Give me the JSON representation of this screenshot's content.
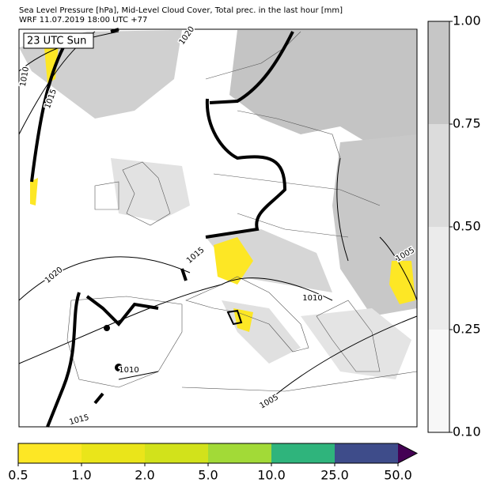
{
  "header": {
    "title": "Sea Level Pressure [hPa], Mid-Level Cloud Cover, Total prec. in the last hour [mm]",
    "subtitle": "WRF 11.07.2019 18:00 UTC +77"
  },
  "map": {
    "time_label": "23 UTC Sun",
    "isobar_labels": [
      1020,
      1010,
      1015,
      1020,
      1015,
      1005,
      1010,
      1010,
      1005,
      1015
    ]
  },
  "cloud_colorbar": {
    "ticks": [
      {
        "value": 0.1,
        "label": "0.10"
      },
      {
        "value": 0.25,
        "label": "0.25"
      },
      {
        "value": 0.5,
        "label": "0.50"
      },
      {
        "value": 0.75,
        "label": "0.75"
      },
      {
        "value": 1,
        "label": "1.00"
      }
    ],
    "colors": [
      "#f7f7f7",
      "#ebebeb",
      "#dcdcdc",
      "#c6c6c6"
    ]
  },
  "precip_colorbar": {
    "ticks": [
      {
        "value": 0.5,
        "label": "0.5"
      },
      {
        "value": 1,
        "label": "1.0"
      },
      {
        "value": 2,
        "label": "2.0"
      },
      {
        "value": 5,
        "label": "5.0"
      },
      {
        "value": 10,
        "label": "10.0"
      },
      {
        "value": 25,
        "label": "25.0"
      },
      {
        "value": 50,
        "label": "50.0"
      }
    ],
    "colors": [
      "#fde725",
      "#eae51a",
      "#d2e21b",
      "#a2da37",
      "#2fb47c",
      "#3e4c8a",
      "#440154"
    ]
  }
}
